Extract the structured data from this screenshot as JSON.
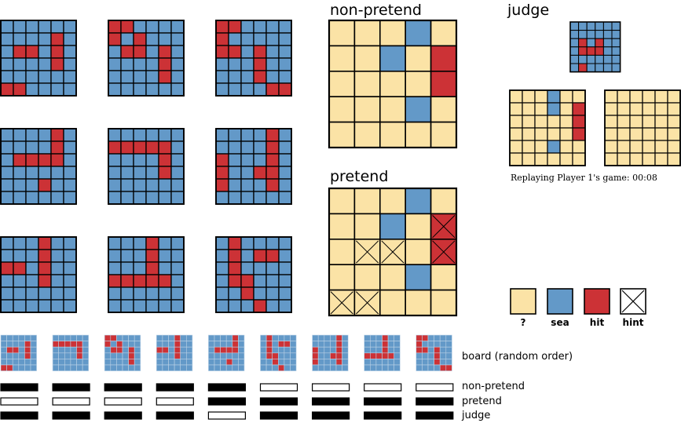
{
  "colors": {
    "unknown": "#fbe3a6",
    "sea": "#6399c8",
    "hit": "#cc3236",
    "hint": "#ffffff",
    "line": "#000000",
    "mini_line": "#bcd2e6"
  },
  "labels": {
    "non_pretend": "non-pretend",
    "pretend": "pretend",
    "judge": "judge",
    "replay": "Replaying Player 1's game: 00:08",
    "board_order": "board (random order)",
    "row_non_pretend": "non-pretend",
    "row_pretend": "pretend",
    "row_judge": "judge"
  },
  "legend": [
    {
      "state": "unknown",
      "label": "?"
    },
    {
      "state": "sea",
      "label": "sea"
    },
    {
      "state": "hit",
      "label": "hit"
    },
    {
      "state": "hint",
      "label": "hint"
    }
  ],
  "board_cells_legend": "0 = sea, 1 = hit",
  "hypothesis_boards": [
    [
      "000000",
      "000010",
      "011010",
      "000010",
      "000000",
      "110000"
    ],
    [
      "110000",
      "101000",
      "011010",
      "000010",
      "000010",
      "000000"
    ],
    [
      "110000",
      "100000",
      "110100",
      "000100",
      "000100",
      "000011"
    ],
    [
      "000010",
      "000010",
      "011110",
      "000000",
      "000100",
      "000000"
    ],
    [
      "000000",
      "111110",
      "000010",
      "000010",
      "000000",
      "000000"
    ],
    [
      "000010",
      "000010",
      "100010",
      "100110",
      "100010",
      "000000"
    ],
    [
      "000100",
      "000100",
      "110100",
      "000100",
      "000000",
      "000000"
    ],
    [
      "000100",
      "000100",
      "000100",
      "111110",
      "000000",
      "000000"
    ],
    [
      "010000",
      "010110",
      "010000",
      "011000",
      "001000",
      "000100"
    ]
  ],
  "game_cells_legend": "? = unknown, s = sea, h = hit, x = hint",
  "non_pretend_board": [
    "???s?",
    "??s?h",
    "????h",
    "???s?",
    "?????"
  ],
  "pretend_board": [
    "???s?",
    "??s?x",
    "?xx?x",
    "???s?",
    "xx???"
  ],
  "pretend_hint_cells_in_hit": [
    [
      1,
      4
    ],
    [
      2,
      4
    ]
  ],
  "judge_small_board": [
    "ssssss",
    "ssssss",
    "shshss",
    "shhhss",
    "ssssss",
    "shssss"
  ],
  "judge_left_board": [
    "???s??",
    "???s?h",
    "?????h",
    "?????h",
    "???s??",
    "??????"
  ],
  "judge_right_board": [
    "??????",
    "??????",
    "??????",
    "??????",
    "??????",
    "??????"
  ],
  "conditions": [
    {
      "non_pretend": true,
      "pretend": false,
      "judge": true
    },
    {
      "non_pretend": true,
      "pretend": false,
      "judge": true
    },
    {
      "non_pretend": true,
      "pretend": false,
      "judge": true
    },
    {
      "non_pretend": true,
      "pretend": false,
      "judge": true
    },
    {
      "non_pretend": true,
      "pretend": true,
      "judge": false
    },
    {
      "non_pretend": false,
      "pretend": true,
      "judge": true
    },
    {
      "non_pretend": false,
      "pretend": true,
      "judge": true
    },
    {
      "non_pretend": false,
      "pretend": true,
      "judge": true
    },
    {
      "non_pretend": false,
      "pretend": true,
      "judge": true
    }
  ]
}
